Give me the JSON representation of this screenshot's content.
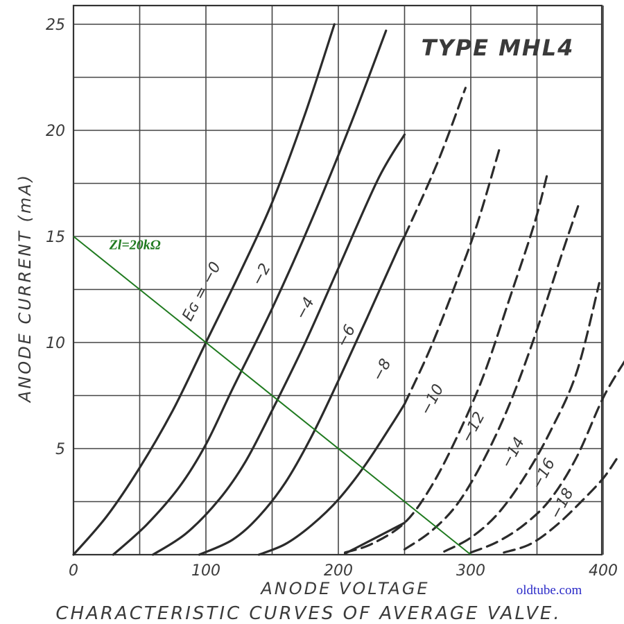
{
  "chart_data": {
    "type": "line",
    "title": "TYPE  MHL4",
    "subtitle": "CHARACTERISTIC CURVES OF AVERAGE VALVE.",
    "xlabel": "ANODE  VOLTAGE",
    "ylabel": "ANODE  CURRENT  (mA)",
    "xlim": [
      0,
      400
    ],
    "ylim": [
      0,
      25
    ],
    "grid": true,
    "x_ticks": [
      "0",
      "100",
      "200",
      "300",
      "400"
    ],
    "y_ticks": [
      "5",
      "10",
      "15",
      "20",
      "25"
    ],
    "series": [
      {
        "name": "EG = -0",
        "label": "Eɢ = −0",
        "label_at": [
          100,
          12.3
        ],
        "style": "solid",
        "points": [
          [
            0,
            0
          ],
          [
            25,
            1.8
          ],
          [
            50,
            4.1
          ],
          [
            75,
            6.8
          ],
          [
            100,
            10
          ],
          [
            125,
            13.2
          ],
          [
            150,
            16.6
          ],
          [
            175,
            20.8
          ],
          [
            197,
            25
          ]
        ]
      },
      {
        "name": "-2",
        "label": "−2",
        "label_at": [
          145,
          13.1
        ],
        "style": "solid",
        "points": [
          [
            30,
            0
          ],
          [
            55,
            1.4
          ],
          [
            80,
            3.2
          ],
          [
            100,
            5.2
          ],
          [
            120,
            7.8
          ],
          [
            150,
            11.6
          ],
          [
            180,
            15.8
          ],
          [
            210,
            20.4
          ],
          [
            236,
            24.7
          ]
        ]
      },
      {
        "name": "-4",
        "label": "−4",
        "label_at": [
          178,
          11.5
        ],
        "style": "solid",
        "points": [
          [
            60,
            0
          ],
          [
            85,
            1
          ],
          [
            110,
            2.6
          ],
          [
            130,
            4.4
          ],
          [
            150,
            6.8
          ],
          [
            175,
            10
          ],
          [
            200,
            13.5
          ],
          [
            230,
            17.7
          ],
          [
            250,
            19.8
          ]
        ]
      },
      {
        "name": "-6",
        "label": "−6",
        "label_at": [
          209,
          10.2
        ],
        "style": "solid",
        "points": [
          [
            95,
            0
          ],
          [
            120,
            0.7
          ],
          [
            140,
            1.8
          ],
          [
            160,
            3.4
          ],
          [
            180,
            5.6
          ],
          [
            200,
            8.2
          ],
          [
            222,
            11.2
          ],
          [
            245,
            14.4
          ],
          [
            250,
            15
          ]
        ],
        "dashed_points": [
          [
            250,
            15
          ],
          [
            275,
            18.5
          ],
          [
            296,
            22
          ]
        ]
      },
      {
        "name": "-8",
        "label": "−8",
        "label_at": [
          236,
          8.6
        ],
        "style": "solid",
        "points": [
          [
            140,
            0
          ],
          [
            160,
            0.5
          ],
          [
            180,
            1.4
          ],
          [
            200,
            2.6
          ],
          [
            220,
            4.2
          ],
          [
            240,
            6.1
          ],
          [
            250,
            7.1
          ]
        ],
        "dashed_points": [
          [
            250,
            7.1
          ],
          [
            270,
            9.8
          ],
          [
            290,
            13
          ],
          [
            305,
            15.6
          ],
          [
            322,
            19.2
          ]
        ]
      },
      {
        "name": "-10",
        "label": "−10",
        "label_at": [
          274,
          7.2
        ],
        "style": "dashed",
        "points": [
          [
            205,
            0.1
          ],
          [
            225,
            0.5
          ],
          [
            250,
            1.5
          ],
          [
            270,
            3.2
          ],
          [
            290,
            5.6
          ],
          [
            310,
            8.5
          ],
          [
            330,
            12.2
          ],
          [
            348,
            15.6
          ],
          [
            358,
            18
          ]
        ]
      },
      {
        "name": "-12",
        "label": "−12",
        "label_at": [
          305,
          5.9
        ],
        "style": "dashed",
        "points": [
          [
            250,
            0.25
          ],
          [
            270,
            1.1
          ],
          [
            290,
            2.4
          ],
          [
            310,
            4.5
          ],
          [
            330,
            7.2
          ],
          [
            350,
            10.6
          ],
          [
            370,
            14.4
          ],
          [
            382,
            16.6
          ]
        ]
      },
      {
        "name": "-14",
        "label": "−14",
        "label_at": [
          335,
          4.7
        ],
        "style": "dashed",
        "points": [
          [
            280,
            0.15
          ],
          [
            300,
            0.8
          ],
          [
            320,
            1.9
          ],
          [
            340,
            3.6
          ],
          [
            360,
            5.8
          ],
          [
            380,
            8.6
          ],
          [
            397,
            12.8
          ]
        ]
      },
      {
        "name": "-16",
        "label": "−16",
        "label_at": [
          358,
          3.7
        ],
        "style": "dashed",
        "points": [
          [
            300,
            0.1
          ],
          [
            320,
            0.6
          ],
          [
            340,
            1.4
          ],
          [
            360,
            2.6
          ],
          [
            380,
            4.6
          ],
          [
            400,
            7.4
          ],
          [
            416,
            9.1
          ]
        ]
      },
      {
        "name": "-18",
        "label": "−18",
        "label_at": [
          372,
          2.3
        ],
        "style": "dashed",
        "points": [
          [
            325,
            0.1
          ],
          [
            345,
            0.5
          ],
          [
            365,
            1.4
          ],
          [
            385,
            2.6
          ],
          [
            400,
            3.6
          ],
          [
            410,
            4.5
          ]
        ]
      }
    ],
    "extra_tail_segments": [
      {
        "series": "-10",
        "style": "solid",
        "points": [
          [
            205,
            0.05
          ],
          [
            250,
            1.5
          ]
        ]
      }
    ],
    "load_line": {
      "label": "Zl=20kΩ",
      "label_at": [
        27,
        14.4
      ],
      "color": "#1f7a1f",
      "points": [
        [
          0,
          15
        ],
        [
          300,
          0
        ]
      ]
    },
    "credit": "oldtube.com",
    "credit_color": "#2a2ac8",
    "ink_color": "#2b2b2b"
  }
}
